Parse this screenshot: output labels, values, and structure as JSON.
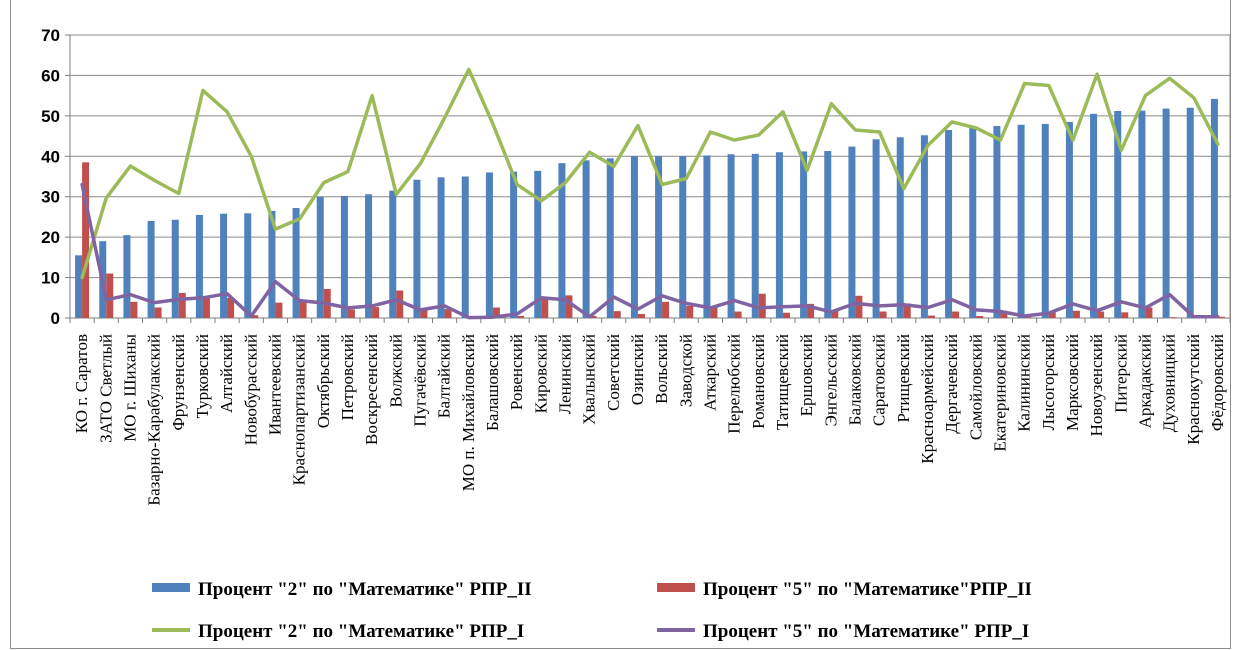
{
  "chart_data": {
    "type": "bar",
    "ylim": [
      0,
      70
    ],
    "yticks": [
      0,
      10,
      20,
      30,
      40,
      50,
      60,
      70
    ],
    "grid": true,
    "legend_position": "bottom",
    "categories": [
      "КО г. Саратов",
      "ЗАТО Светлый",
      "МО г. Шиханы",
      "Базарно-Карабулакский",
      "Фрунзенский",
      "Турковский",
      "Алтайский",
      "Новобурасский",
      "Ивантеевский",
      "Краснопартизанский",
      "Октябрьский",
      "Петровский",
      "Воскресенский",
      "Волжский",
      "Пугачёвский",
      "Балтайский",
      "МО п. Михайловский",
      "Балашовский",
      "Ровенский",
      "Кировский",
      "Ленинский",
      "Хвалынский",
      "Советский",
      "Озинский",
      "Вольский",
      "Заводской",
      "Аткарский",
      "Перелюбский",
      "Романовский",
      "Татищевский",
      "Ершовский",
      "Энгельсский",
      "Балаковский",
      "Саратовский",
      "Ртищевский",
      "Красноармейский",
      "Дергачевский",
      "Самойловский",
      "Екатериновский",
      "Калининский",
      "Лысогорский",
      "Марксовский",
      "Новоузенский",
      "Питерский",
      "Аркадакский",
      "Духовницкий",
      "Краснокутский",
      "Фёдоровский"
    ],
    "series": [
      {
        "name": "Процент \"2\" по \"Математике\" РПР_II",
        "kind": "bar",
        "color": "#4f81bd",
        "values": [
          15.5,
          19,
          20.5,
          24,
          24.3,
          25.5,
          25.8,
          25.9,
          26.5,
          27.2,
          30,
          30.2,
          30.6,
          31.5,
          34.2,
          34.8,
          35,
          36,
          36.2,
          36.4,
          38.3,
          39,
          39.5,
          40,
          40,
          40,
          40.2,
          40.5,
          40.6,
          41,
          41.2,
          41.3,
          42.4,
          44.2,
          44.7,
          45.2,
          46.5,
          47,
          47.5,
          47.8,
          48,
          48.5,
          50.5,
          51.2,
          51.3,
          51.8,
          52,
          54.2
        ]
      },
      {
        "name": "Процент \"5\" по \"Математике\"РПР_II",
        "kind": "bar",
        "color": "#c0504d",
        "values": [
          38.5,
          11,
          4,
          2.6,
          6.2,
          5,
          5,
          0.7,
          3.8,
          4.2,
          7.2,
          2.1,
          2.7,
          6.8,
          2.3,
          2.2,
          0.5,
          2.6,
          0.5,
          4.9,
          5.6,
          0.5,
          1.7,
          1,
          4,
          3,
          2.8,
          1.6,
          6,
          1.3,
          3.5,
          1.8,
          5.5,
          1.6,
          3.6,
          0.6,
          1.6,
          0.5,
          1.3,
          0.2,
          1.6,
          1.8,
          1.6,
          1.4,
          2.6,
          0.2,
          0.5,
          0.3
        ]
      },
      {
        "name": "Процент \"2\" по \"Математике\" РПР_I",
        "kind": "line",
        "color": "#9bbb59",
        "values": [
          10,
          29.7,
          37.6,
          34,
          30.8,
          56.3,
          51,
          40,
          22,
          24.5,
          33.5,
          36.2,
          55,
          30.6,
          38.2,
          49.5,
          61.5,
          48,
          33,
          29,
          33.5,
          41,
          37.5,
          47.6,
          33,
          34.5,
          46,
          44,
          45.3,
          51,
          36.5,
          53,
          46.5,
          46,
          32,
          42.7,
          48.5,
          47,
          44,
          58,
          57.5,
          44,
          60.3,
          41.5,
          55,
          59.3,
          54.5,
          43
        ]
      },
      {
        "name": "Процент \"5\" по \"Математике\" РПР_I",
        "kind": "line",
        "color": "#8064a2",
        "values": [
          33,
          4.5,
          5.8,
          3.8,
          4.6,
          5,
          6,
          0.5,
          9,
          4.3,
          3.7,
          2.5,
          3,
          4.5,
          2,
          3,
          0.1,
          0.2,
          1,
          5,
          4.5,
          0.3,
          5.2,
          2.2,
          5.5,
          3.6,
          2.5,
          4.3,
          2.5,
          2.8,
          3,
          1.5,
          3.6,
          3,
          3.3,
          2.6,
          4.5,
          2,
          1.6,
          0.5,
          1.2,
          3.5,
          1.8,
          4,
          2.5,
          5.8,
          0.3,
          0.3
        ]
      }
    ]
  }
}
